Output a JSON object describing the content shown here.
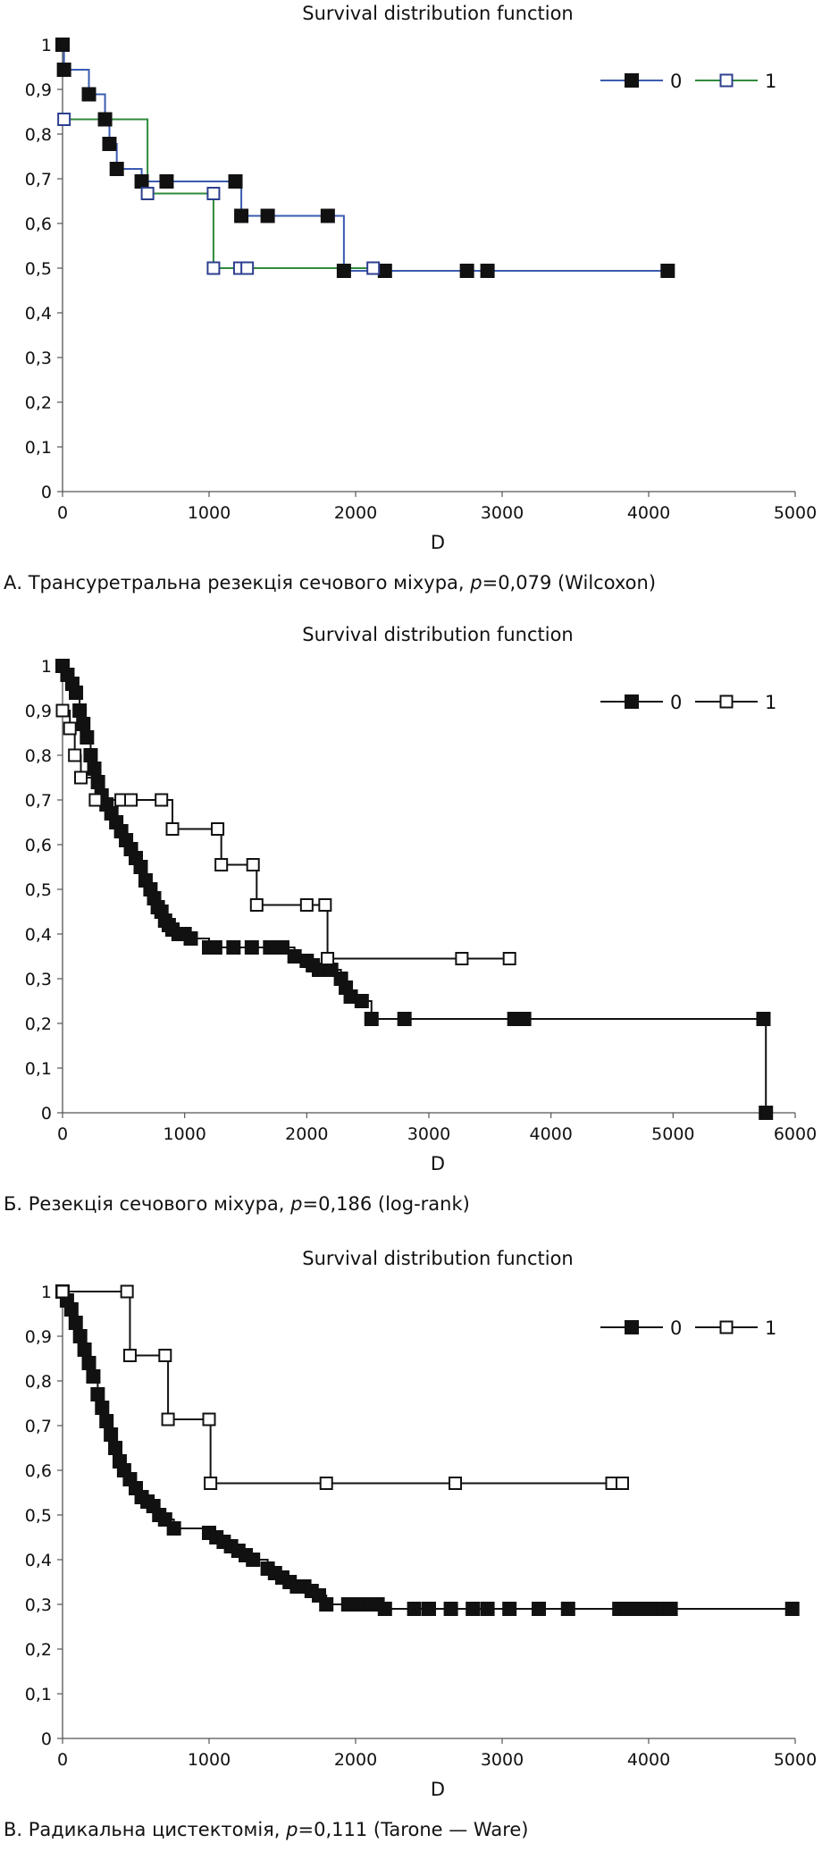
{
  "chart_data": [
    {
      "type": "line",
      "title": "Survival distribution function",
      "xlabel": "D",
      "ylabel": "",
      "xlim": [
        0,
        5000
      ],
      "ylim": [
        0,
        1
      ],
      "xticks": [
        0,
        1000,
        2000,
        3000,
        4000,
        5000
      ],
      "xtick_labels": [
        "0",
        "1000",
        "2000",
        "3000",
        "4000",
        "5000"
      ],
      "yticks": [
        0,
        0.1,
        0.2,
        0.3,
        0.4,
        0.5,
        0.6,
        0.7,
        0.8,
        0.9,
        1
      ],
      "ytick_labels": [
        "0",
        "0,1",
        "0,2",
        "0,3",
        "0,4",
        "0,5",
        "0,6",
        "0,7",
        "0,8",
        "0,9",
        "1"
      ],
      "grid": false,
      "legend_position": "top-right",
      "caption": {
        "prefix": "А. Трансуретральна резекція сечового міхура, ",
        "p_label": "p",
        "suffix": "=0,079 (Wilcoxon)"
      },
      "series": [
        {
          "name": "0",
          "color": "#3a5bb0",
          "marker": "filled-square",
          "x": [
            0,
            10,
            180,
            290,
            320,
            370,
            540,
            710,
            1180,
            1220,
            1400,
            1810,
            1920,
            2200,
            2760,
            2900,
            4130
          ],
          "y": [
            1,
            0.944,
            0.889,
            0.833,
            0.778,
            0.722,
            0.694,
            0.694,
            0.694,
            0.617,
            0.617,
            0.617,
            0.494,
            0.494,
            0.494,
            0.494,
            0.494
          ]
        },
        {
          "name": "1",
          "color": "#2f8a3a",
          "marker": "open-square",
          "x": [
            10,
            580,
            1030,
            1030,
            1210,
            1260,
            2120
          ],
          "y": [
            0.833,
            0.667,
            0.667,
            0.5,
            0.5,
            0.5,
            0.5
          ]
        }
      ]
    },
    {
      "type": "line",
      "title": "Survival distribution function",
      "xlabel": "D",
      "ylabel": "",
      "xlim": [
        0,
        6000
      ],
      "ylim": [
        0,
        1
      ],
      "xticks": [
        0,
        1000,
        2000,
        3000,
        4000,
        5000,
        6000
      ],
      "xtick_labels": [
        "0",
        "1000",
        "2000",
        "3000",
        "4000",
        "5000",
        "6000"
      ],
      "yticks": [
        0,
        0.1,
        0.2,
        0.3,
        0.4,
        0.5,
        0.6,
        0.7,
        0.8,
        0.9,
        1
      ],
      "ytick_labels": [
        "0",
        "0,1",
        "0,2",
        "0,3",
        "0,4",
        "0,5",
        "0,6",
        "0,7",
        "0,8",
        "0,9",
        "1"
      ],
      "grid": false,
      "legend_position": "top-right",
      "caption": {
        "prefix": "Б. Резекція сечового міхура, ",
        "p_label": "p",
        "suffix": "=0,186 (log-rank)"
      },
      "series": [
        {
          "name": "0",
          "color": "#111111",
          "marker": "filled-square",
          "x": [
            0,
            40,
            80,
            110,
            140,
            170,
            200,
            230,
            260,
            290,
            320,
            360,
            400,
            440,
            480,
            520,
            560,
            600,
            640,
            680,
            720,
            750,
            780,
            810,
            840,
            870,
            900,
            950,
            1000,
            1050,
            1200,
            1250,
            1400,
            1550,
            1700,
            1800,
            1900,
            2000,
            2050,
            2100,
            2150,
            2200,
            2280,
            2320,
            2360,
            2450,
            2530,
            2800,
            3700,
            3780,
            5740,
            5760
          ],
          "y": [
            1,
            0.98,
            0.96,
            0.94,
            0.9,
            0.87,
            0.84,
            0.8,
            0.77,
            0.74,
            0.71,
            0.69,
            0.67,
            0.65,
            0.63,
            0.61,
            0.59,
            0.57,
            0.55,
            0.52,
            0.5,
            0.48,
            0.46,
            0.45,
            0.43,
            0.42,
            0.41,
            0.4,
            0.4,
            0.39,
            0.37,
            0.37,
            0.37,
            0.37,
            0.37,
            0.37,
            0.35,
            0.34,
            0.33,
            0.32,
            0.32,
            0.32,
            0.3,
            0.28,
            0.26,
            0.25,
            0.21,
            0.21,
            0.21,
            0.21,
            0.21,
            0
          ]
        },
        {
          "name": "1",
          "color": "#111111",
          "marker": "open-square",
          "x": [
            0,
            60,
            100,
            150,
            270,
            480,
            560,
            810,
            900,
            1270,
            1300,
            1560,
            1590,
            2000,
            2150,
            2170,
            3270,
            3660
          ],
          "y": [
            0.9,
            0.86,
            0.8,
            0.75,
            0.7,
            0.7,
            0.7,
            0.7,
            0.635,
            0.635,
            0.555,
            0.555,
            0.465,
            0.465,
            0.465,
            0.345,
            0.345,
            0.345
          ]
        }
      ]
    },
    {
      "type": "line",
      "title": "Survival distribution function",
      "xlabel": "D",
      "ylabel": "",
      "xlim": [
        0,
        5000
      ],
      "ylim": [
        0,
        1
      ],
      "xticks": [
        0,
        1000,
        2000,
        3000,
        4000,
        5000
      ],
      "xtick_labels": [
        "0",
        "1000",
        "2000",
        "3000",
        "4000",
        "5000"
      ],
      "yticks": [
        0,
        0.1,
        0.2,
        0.3,
        0.4,
        0.5,
        0.6,
        0.7,
        0.8,
        0.9,
        1
      ],
      "ytick_labels": [
        "0",
        "0,1",
        "0,2",
        "0,3",
        "0,4",
        "0,5",
        "0,6",
        "0,7",
        "0,8",
        "0,9",
        "1"
      ],
      "grid": false,
      "legend_position": "top-right",
      "caption": {
        "prefix": "В. Радикальна цистектомія, ",
        "p_label": "p",
        "suffix": "=0,111 (Tarone — Ware)"
      },
      "series": [
        {
          "name": "0",
          "color": "#111111",
          "marker": "filled-square",
          "x": [
            0,
            30,
            60,
            90,
            120,
            150,
            180,
            210,
            240,
            270,
            300,
            330,
            360,
            390,
            420,
            460,
            500,
            540,
            580,
            620,
            660,
            700,
            760,
            1000,
            1050,
            1100,
            1150,
            1200,
            1250,
            1300,
            1400,
            1450,
            1500,
            1550,
            1600,
            1650,
            1700,
            1750,
            1800,
            1950,
            2000,
            2050,
            2100,
            2150,
            2200,
            2400,
            2500,
            2650,
            2800,
            2900,
            3050,
            3250,
            3450,
            3800,
            3850,
            3900,
            3950,
            4000,
            4050,
            4100,
            4150,
            4980
          ],
          "y": [
            1,
            0.98,
            0.96,
            0.93,
            0.9,
            0.87,
            0.84,
            0.81,
            0.77,
            0.74,
            0.71,
            0.68,
            0.65,
            0.62,
            0.6,
            0.58,
            0.56,
            0.54,
            0.53,
            0.52,
            0.5,
            0.49,
            0.47,
            0.46,
            0.45,
            0.44,
            0.43,
            0.42,
            0.41,
            0.4,
            0.38,
            0.37,
            0.36,
            0.35,
            0.34,
            0.34,
            0.33,
            0.32,
            0.3,
            0.3,
            0.3,
            0.3,
            0.3,
            0.3,
            0.29,
            0.29,
            0.29,
            0.29,
            0.29,
            0.29,
            0.29,
            0.29,
            0.29,
            0.29,
            0.29,
            0.29,
            0.29,
            0.29,
            0.29,
            0.29,
            0.29,
            0.29
          ]
        },
        {
          "name": "1",
          "color": "#111111",
          "marker": "open-square",
          "x": [
            0,
            440,
            460,
            700,
            720,
            1000,
            1010,
            1800,
            2680,
            3750,
            3820
          ],
          "y": [
            1,
            1,
            0.857,
            0.857,
            0.714,
            0.714,
            0.571,
            0.571,
            0.571,
            0.571,
            0.571
          ]
        }
      ]
    }
  ]
}
